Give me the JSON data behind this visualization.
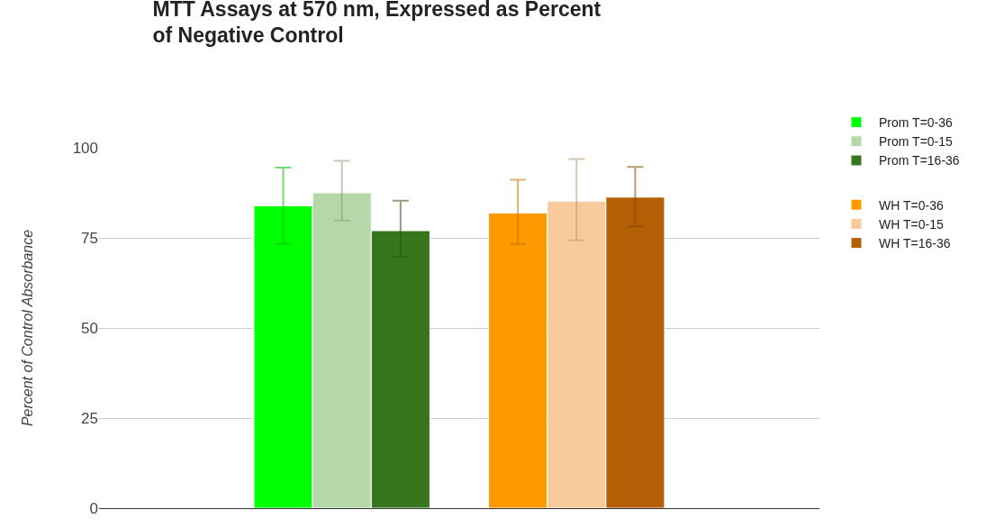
{
  "chart_data": {
    "type": "bar",
    "title": "MTT Assays at 570 nm, Expressed as Percent of Negative Control",
    "ylabel": "Percent of Control Absorbance",
    "categories": [
      null
    ],
    "series": [
      {
        "name": "Prom T=0-36",
        "color": "#00ff00",
        "values": [
          83.9
        ],
        "errors": [
          [
            73.4,
            94.5
          ]
        ]
      },
      {
        "name": "Prom T=0-15",
        "color": "#b6d7a8",
        "values": [
          87.5
        ],
        "errors": [
          [
            79.8,
            96.4
          ]
        ]
      },
      {
        "name": "Prom T=16-36",
        "color": "#38761d",
        "values": [
          77.0
        ],
        "errors": [
          [
            69.8,
            85.3
          ]
        ]
      },
      {
        "values": [
          null
        ]
      },
      {
        "name": "WH T=0-36",
        "color": "#ff9900",
        "values": [
          81.9
        ],
        "errors": [
          [
            73.3,
            91.1
          ]
        ]
      },
      {
        "name": "WH T=0-15",
        "color": "#f9cb9c",
        "values": [
          85.2
        ],
        "errors": [
          [
            74.3,
            96.9
          ]
        ]
      },
      {
        "name": "WH T=16-36",
        "color": "#b45f06",
        "values": [
          86.3
        ],
        "errors": [
          [
            78.1,
            94.7
          ]
        ]
      }
    ],
    "ylim": [
      0,
      100
    ],
    "yticks": [
      0,
      25,
      50,
      75,
      100
    ],
    "grid": "y",
    "legend": "right",
    "tick_labels": "y"
  }
}
